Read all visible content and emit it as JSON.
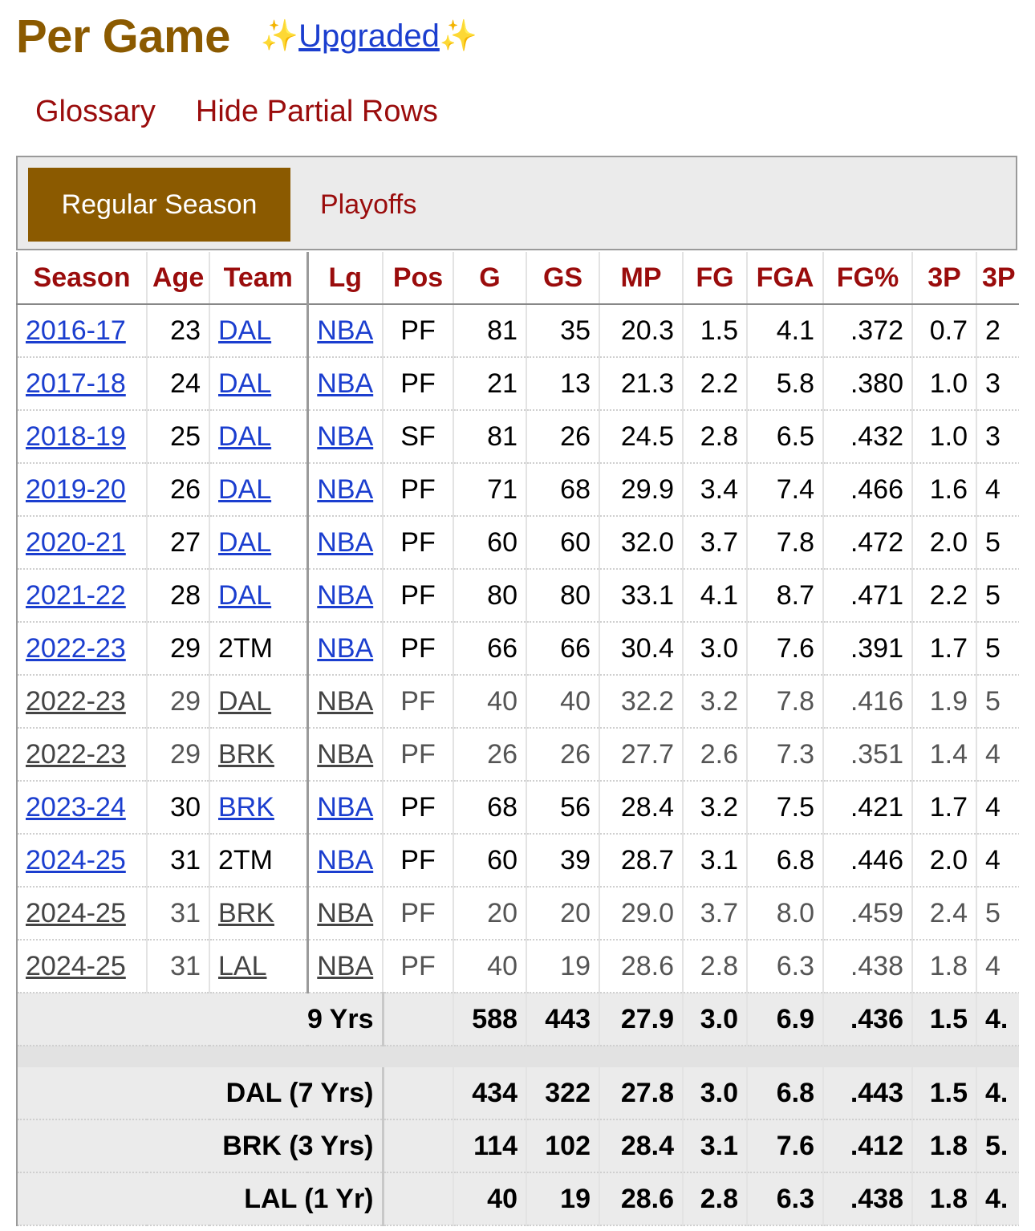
{
  "heading": {
    "title": "Per Game",
    "sparkle_left": "✨",
    "upgraded_label": "Upgraded",
    "sparkle_right": "✨"
  },
  "links": {
    "glossary": "Glossary",
    "hide_partial": "Hide Partial Rows"
  },
  "tabs": {
    "regular": "Regular Season",
    "playoffs": "Playoffs"
  },
  "columns": [
    "Season",
    "Age",
    "Team",
    "Lg",
    "Pos",
    "G",
    "GS",
    "MP",
    "FG",
    "FGA",
    "FG%",
    "3P",
    "3P"
  ],
  "rows": [
    {
      "season": "2016-17",
      "age": "23",
      "team": "DAL",
      "team_link": true,
      "lg": "NBA",
      "pos": "PF",
      "g": "81",
      "gs": "35",
      "mp": "20.3",
      "fg": "1.5",
      "fga": "4.1",
      "fgp": ".372",
      "p3": "0.7",
      "p3a": "2",
      "partial": false
    },
    {
      "season": "2017-18",
      "age": "24",
      "team": "DAL",
      "team_link": true,
      "lg": "NBA",
      "pos": "PF",
      "g": "21",
      "gs": "13",
      "mp": "21.3",
      "fg": "2.2",
      "fga": "5.8",
      "fgp": ".380",
      "p3": "1.0",
      "p3a": "3",
      "partial": false
    },
    {
      "season": "2018-19",
      "age": "25",
      "team": "DAL",
      "team_link": true,
      "lg": "NBA",
      "pos": "SF",
      "g": "81",
      "gs": "26",
      "mp": "24.5",
      "fg": "2.8",
      "fga": "6.5",
      "fgp": ".432",
      "p3": "1.0",
      "p3a": "3",
      "partial": false
    },
    {
      "season": "2019-20",
      "age": "26",
      "team": "DAL",
      "team_link": true,
      "lg": "NBA",
      "pos": "PF",
      "g": "71",
      "gs": "68",
      "mp": "29.9",
      "fg": "3.4",
      "fga": "7.4",
      "fgp": ".466",
      "p3": "1.6",
      "p3a": "4",
      "partial": false
    },
    {
      "season": "2020-21",
      "age": "27",
      "team": "DAL",
      "team_link": true,
      "lg": "NBA",
      "pos": "PF",
      "g": "60",
      "gs": "60",
      "mp": "32.0",
      "fg": "3.7",
      "fga": "7.8",
      "fgp": ".472",
      "p3": "2.0",
      "p3a": "5",
      "partial": false
    },
    {
      "season": "2021-22",
      "age": "28",
      "team": "DAL",
      "team_link": true,
      "lg": "NBA",
      "pos": "PF",
      "g": "80",
      "gs": "80",
      "mp": "33.1",
      "fg": "4.1",
      "fga": "8.7",
      "fgp": ".471",
      "p3": "2.2",
      "p3a": "5",
      "partial": false
    },
    {
      "season": "2022-23",
      "age": "29",
      "team": "2TM",
      "team_link": false,
      "lg": "NBA",
      "pos": "PF",
      "g": "66",
      "gs": "66",
      "mp": "30.4",
      "fg": "3.0",
      "fga": "7.6",
      "fgp": ".391",
      "p3": "1.7",
      "p3a": "5",
      "partial": false
    },
    {
      "season": "2022-23",
      "age": "29",
      "team": "DAL",
      "team_link": true,
      "lg": "NBA",
      "pos": "PF",
      "g": "40",
      "gs": "40",
      "mp": "32.2",
      "fg": "3.2",
      "fga": "7.8",
      "fgp": ".416",
      "p3": "1.9",
      "p3a": "5",
      "partial": true
    },
    {
      "season": "2022-23",
      "age": "29",
      "team": "BRK",
      "team_link": true,
      "lg": "NBA",
      "pos": "PF",
      "g": "26",
      "gs": "26",
      "mp": "27.7",
      "fg": "2.6",
      "fga": "7.3",
      "fgp": ".351",
      "p3": "1.4",
      "p3a": "4",
      "partial": true
    },
    {
      "season": "2023-24",
      "age": "30",
      "team": "BRK",
      "team_link": true,
      "lg": "NBA",
      "pos": "PF",
      "g": "68",
      "gs": "56",
      "mp": "28.4",
      "fg": "3.2",
      "fga": "7.5",
      "fgp": ".421",
      "p3": "1.7",
      "p3a": "4",
      "partial": false
    },
    {
      "season": "2024-25",
      "age": "31",
      "team": "2TM",
      "team_link": false,
      "lg": "NBA",
      "pos": "PF",
      "g": "60",
      "gs": "39",
      "mp": "28.7",
      "fg": "3.1",
      "fga": "6.8",
      "fgp": ".446",
      "p3": "2.0",
      "p3a": "4",
      "partial": false
    },
    {
      "season": "2024-25",
      "age": "31",
      "team": "BRK",
      "team_link": true,
      "lg": "NBA",
      "pos": "PF",
      "g": "20",
      "gs": "20",
      "mp": "29.0",
      "fg": "3.7",
      "fga": "8.0",
      "fgp": ".459",
      "p3": "2.4",
      "p3a": "5",
      "partial": true
    },
    {
      "season": "2024-25",
      "age": "31",
      "team": "LAL",
      "team_link": true,
      "lg": "NBA",
      "pos": "PF",
      "g": "40",
      "gs": "19",
      "mp": "28.6",
      "fg": "2.8",
      "fga": "6.3",
      "fgp": ".438",
      "p3": "1.8",
      "p3a": "4",
      "partial": true
    }
  ],
  "career": {
    "label": "9 Yrs",
    "g": "588",
    "gs": "443",
    "mp": "27.9",
    "fg": "3.0",
    "fga": "6.9",
    "fgp": ".436",
    "p3": "1.5",
    "p3a": "4."
  },
  "team_totals": [
    {
      "label": "DAL (7 Yrs)",
      "g": "434",
      "gs": "322",
      "mp": "27.8",
      "fg": "3.0",
      "fga": "6.8",
      "fgp": ".443",
      "p3": "1.5",
      "p3a": "4."
    },
    {
      "label": "BRK (3 Yrs)",
      "g": "114",
      "gs": "102",
      "mp": "28.4",
      "fg": "3.1",
      "fga": "7.6",
      "fgp": ".412",
      "p3": "1.8",
      "p3a": "5."
    },
    {
      "label": "LAL (1 Yr)",
      "g": "40",
      "gs": "19",
      "mp": "28.6",
      "fg": "2.8",
      "fga": "6.3",
      "fgp": ".438",
      "p3": "1.8",
      "p3a": "4."
    }
  ]
}
